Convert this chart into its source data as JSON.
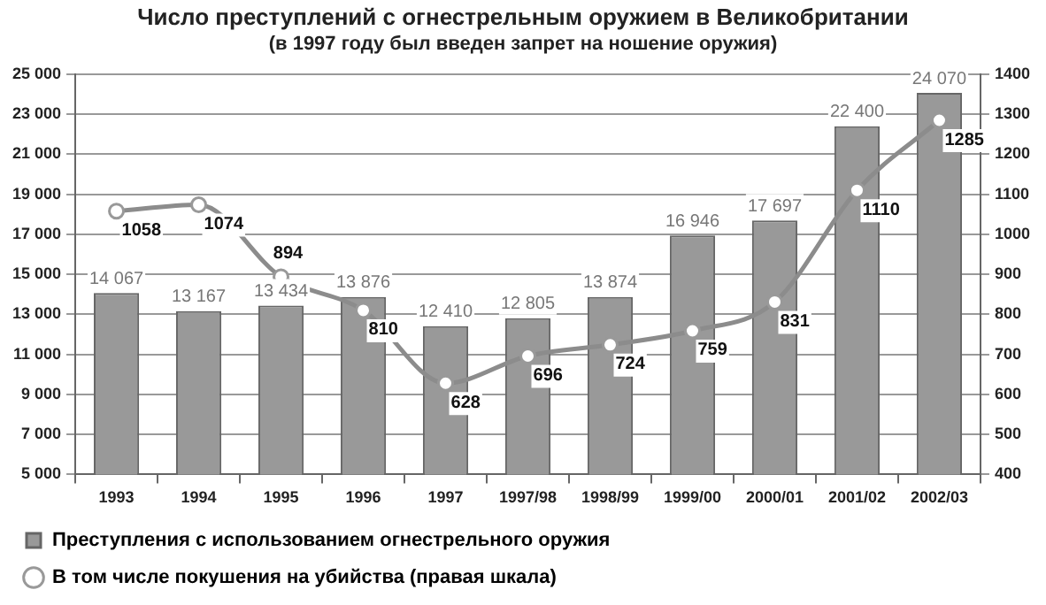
{
  "chart_data": {
    "type": "bar",
    "title": "Число преступлений с огнестрельным оружием в Великобритании",
    "subtitle": "(в 1997 году был введен запрет на ношение оружия)",
    "categories": [
      "1993",
      "1994",
      "1995",
      "1996",
      "1997",
      "1997/98",
      "1998/99",
      "1999/00",
      "2000/01",
      "2001/02",
      "2002/03"
    ],
    "series": [
      {
        "name": "Преступления с использованием огнестрельного оружия",
        "color": "#999999",
        "values": [
          14067,
          13167,
          13434,
          13876,
          12410,
          12805,
          13874,
          16946,
          17697,
          22400,
          24070
        ]
      },
      {
        "name": "В том числе покушения на убийства (правая шкала)",
        "type": "line",
        "axis": "y2",
        "color": "#8c8c8c",
        "marker": "circle",
        "values": [
          1058,
          1074,
          894,
          810,
          628,
          696,
          724,
          759,
          831,
          1110,
          1285
        ]
      }
    ],
    "ylim": [
      5000,
      25000
    ],
    "yticks": [
      {
        "value": 5000,
        "label": "5 000"
      },
      {
        "value": 7000,
        "label": "7 000"
      },
      {
        "value": 9000,
        "label": "9 000"
      },
      {
        "value": 11000,
        "label": "11 000"
      },
      {
        "value": 13000,
        "label": "13 000"
      },
      {
        "value": 15000,
        "label": "15 000"
      },
      {
        "value": 17000,
        "label": "17 000"
      },
      {
        "value": 19000,
        "label": "19 000"
      },
      {
        "value": 21000,
        "label": "21 000"
      },
      {
        "value": 23000,
        "label": "23 000"
      },
      {
        "value": 25000,
        "label": "25 000"
      }
    ],
    "y2lim": [
      400,
      1400
    ],
    "y2ticks": [
      400,
      500,
      600,
      700,
      800,
      900,
      1000,
      1100,
      1200,
      1300,
      1400
    ],
    "value_labels": [
      [
        "14 067",
        "13 167",
        "13 434",
        "13 876",
        "12 410",
        "12 805",
        "13 874",
        "16 946",
        "17 697",
        "22 400",
        "24 070"
      ],
      null
    ],
    "data_labels": true,
    "grid": "y",
    "legend": "bottom left"
  }
}
